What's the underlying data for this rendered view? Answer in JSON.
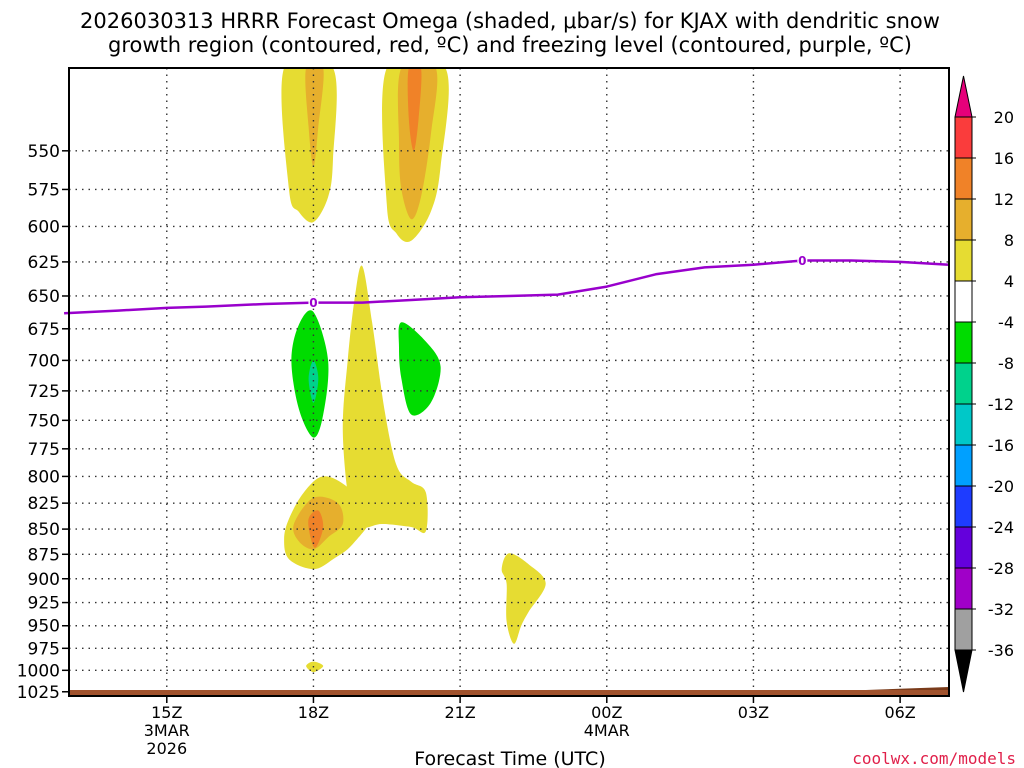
{
  "title": {
    "line1": "2026030313 HRRR Forecast Omega (shaded, μbar/s) for KJAX with dendritic snow",
    "line2": "growth region (contoured, red, ºC) and freezing level (contoured, purple, ºC)"
  },
  "credit": "coolwx.com/models",
  "chart_data": {
    "type": "time-height",
    "title": "2026030313 HRRR Forecast Omega (shaded, μbar/s) for KJAX with dendritic snow growth region (contoured, red, ºC) and freezing level (contoured, purple, ºC)",
    "xlabel": "Forecast Time (UTC)",
    "ylabel": "",
    "x_unit": "hours since 2026-03-03 13Z",
    "xlim": [
      0,
      18
    ],
    "ylim": [
      1030,
      500
    ],
    "y_scale": "log-pressure",
    "grid": true,
    "x_ticks": [
      {
        "hour": 2,
        "label": "15Z",
        "sub1": "3MAR",
        "sub2": "2026"
      },
      {
        "hour": 5,
        "label": "18Z",
        "sub1": "",
        "sub2": ""
      },
      {
        "hour": 8,
        "label": "21Z",
        "sub1": "",
        "sub2": ""
      },
      {
        "hour": 11,
        "label": "00Z",
        "sub1": "4MAR",
        "sub2": ""
      },
      {
        "hour": 14,
        "label": "03Z",
        "sub1": "",
        "sub2": ""
      },
      {
        "hour": 17,
        "label": "06Z",
        "sub1": "",
        "sub2": ""
      }
    ],
    "y_ticks": [
      {
        "p": 550,
        "label": "550"
      },
      {
        "p": 575,
        "label": "575"
      },
      {
        "p": 600,
        "label": "600"
      },
      {
        "p": 625,
        "label": "625"
      },
      {
        "p": 650,
        "label": "650"
      },
      {
        "p": 675,
        "label": "675"
      },
      {
        "p": 700,
        "label": "700"
      },
      {
        "p": 725,
        "label": "725"
      },
      {
        "p": 750,
        "label": "750"
      },
      {
        "p": 775,
        "label": "775"
      },
      {
        "p": 800,
        "label": "800"
      },
      {
        "p": 825,
        "label": "825"
      },
      {
        "p": 850,
        "label": "850"
      },
      {
        "p": 875,
        "label": "875"
      },
      {
        "p": 900,
        "label": "900"
      },
      {
        "p": 925,
        "label": "925"
      },
      {
        "p": 950,
        "label": "950"
      },
      {
        "p": 975,
        "label": "975"
      },
      {
        "p": 1000,
        "label": "1000"
      },
      {
        "p": 1025,
        "label": "1025"
      }
    ],
    "colorbar": {
      "levels": [
        -36,
        -32,
        -28,
        -24,
        -20,
        -16,
        -12,
        -8,
        -4,
        4,
        8,
        12,
        16,
        20
      ],
      "labels": [
        "-36",
        "-32",
        "-28",
        "-24",
        "-20",
        "-16",
        "-12",
        "-8",
        "-4",
        "4",
        "8",
        "12",
        "16",
        "20"
      ],
      "colors": [
        "#000000",
        "#a0a0a0",
        "#a000c8",
        "#6400dc",
        "#1e3cff",
        "#00a0ff",
        "#00c8c8",
        "#00d28c",
        "#00dc00",
        "#ffffff",
        "#e6dc32",
        "#e6af2d",
        "#f08228",
        "#fa3c3c",
        "#e6007a"
      ]
    },
    "freezing_level": {
      "name": "freezing level 0 ºC",
      "color": "#9900cc",
      "points": [
        [
          -0.1,
          663
        ],
        [
          1.0,
          661
        ],
        [
          2.0,
          659
        ],
        [
          2.8,
          658
        ],
        [
          4.0,
          656
        ],
        [
          5.0,
          655
        ],
        [
          6.0,
          655
        ],
        [
          7.0,
          653
        ],
        [
          8.0,
          651
        ],
        [
          9.0,
          650
        ],
        [
          10.0,
          649
        ],
        [
          11.0,
          643
        ],
        [
          12.0,
          634
        ],
        [
          13.0,
          629
        ],
        [
          14.0,
          627
        ],
        [
          15.0,
          624
        ],
        [
          16.0,
          624
        ],
        [
          17.0,
          625
        ],
        [
          18.0,
          627
        ]
      ],
      "labels": [
        {
          "hour": 5.0,
          "p": 655,
          "text": "0"
        },
        {
          "hour": 15.0,
          "p": 624,
          "text": "0"
        }
      ]
    },
    "terrain": {
      "name": "surface",
      "color": "#a0522d",
      "p_top": 1032
    },
    "omega_regions": [
      {
        "name": "ascent area 18Z aloft",
        "value": 4,
        "color": "#e6dc32",
        "points": [
          [
            4.4,
            500
          ],
          [
            5.4,
            500
          ],
          [
            5.4,
            555
          ],
          [
            5.3,
            580
          ],
          [
            5.0,
            597
          ],
          [
            4.7,
            590
          ],
          [
            4.5,
            575
          ]
        ]
      },
      {
        "name": "ascent core 18Z aloft",
        "value": 8,
        "color": "#e6af2d",
        "points": [
          [
            4.85,
            500
          ],
          [
            5.2,
            500
          ],
          [
            5.1,
            535
          ],
          [
            5.0,
            560
          ],
          [
            4.9,
            535
          ]
        ]
      },
      {
        "name": "ascent area 20Z aloft",
        "value": 4,
        "color": "#e6dc32",
        "points": [
          [
            6.5,
            500
          ],
          [
            7.7,
            500
          ],
          [
            7.6,
            560
          ],
          [
            7.4,
            590
          ],
          [
            7.0,
            610
          ],
          [
            6.7,
            605
          ],
          [
            6.5,
            585
          ]
        ]
      },
      {
        "name": "ascent core 20Z aloft",
        "value": 8,
        "color": "#e6af2d",
        "points": [
          [
            6.8,
            500
          ],
          [
            7.5,
            500
          ],
          [
            7.4,
            540
          ],
          [
            7.2,
            580
          ],
          [
            7.0,
            595
          ],
          [
            6.8,
            575
          ],
          [
            6.75,
            545
          ]
        ]
      },
      {
        "name": "ascent peak 20Z aloft",
        "value": 12,
        "color": "#f08228",
        "points": [
          [
            6.95,
            500
          ],
          [
            7.2,
            500
          ],
          [
            7.15,
            530
          ],
          [
            7.05,
            550
          ],
          [
            6.95,
            530
          ]
        ]
      },
      {
        "name": "descent 18Z",
        "value": -4,
        "color": "#00dc00",
        "points": [
          [
            5.0,
            662
          ],
          [
            5.3,
            700
          ],
          [
            5.2,
            745
          ],
          [
            5.0,
            765
          ],
          [
            4.7,
            740
          ],
          [
            4.55,
            700
          ],
          [
            4.7,
            672
          ]
        ]
      },
      {
        "name": "descent core 18Z",
        "value": -8,
        "color": "#00d28c",
        "points": [
          [
            5.0,
            700
          ],
          [
            5.1,
            715
          ],
          [
            5.0,
            735
          ],
          [
            4.9,
            715
          ]
        ]
      },
      {
        "name": "descent 20Z",
        "value": -4,
        "color": "#00dc00",
        "points": [
          [
            6.8,
            670
          ],
          [
            7.3,
            685
          ],
          [
            7.6,
            705
          ],
          [
            7.4,
            735
          ],
          [
            7.0,
            745
          ],
          [
            6.8,
            715
          ],
          [
            6.75,
            690
          ]
        ]
      },
      {
        "name": "ascent plume 19Z",
        "value": 4,
        "color": "#e6dc32",
        "points": [
          [
            6.0,
            628
          ],
          [
            6.2,
            670
          ],
          [
            6.45,
            740
          ],
          [
            6.7,
            790
          ],
          [
            7.0,
            805
          ],
          [
            7.3,
            815
          ],
          [
            7.3,
            852
          ],
          [
            7.0,
            848
          ],
          [
            6.4,
            845
          ],
          [
            6.0,
            848
          ],
          [
            5.75,
            830
          ],
          [
            5.6,
            760
          ],
          [
            5.7,
            700
          ],
          [
            5.85,
            650
          ]
        ]
      },
      {
        "name": "ascent low-level 18Z",
        "value": 4,
        "color": "#e6dc32",
        "points": [
          [
            4.5,
            840
          ],
          [
            4.8,
            815
          ],
          [
            5.2,
            800
          ],
          [
            5.7,
            810
          ],
          [
            6.2,
            835
          ],
          [
            5.8,
            865
          ],
          [
            5.4,
            880
          ],
          [
            5.0,
            890
          ],
          [
            4.5,
            880
          ],
          [
            4.4,
            860
          ]
        ]
      },
      {
        "name": "ascent low-level core 18Z",
        "value": 8,
        "color": "#e6af2d",
        "points": [
          [
            4.6,
            845
          ],
          [
            5.0,
            820
          ],
          [
            5.5,
            825
          ],
          [
            5.6,
            845
          ],
          [
            5.3,
            858
          ],
          [
            5.0,
            870
          ],
          [
            4.7,
            862
          ]
        ]
      },
      {
        "name": "ascent low-level peak 18Z",
        "value": 12,
        "color": "#f08228",
        "points": [
          [
            4.9,
            840
          ],
          [
            5.1,
            832
          ],
          [
            5.2,
            848
          ],
          [
            5.05,
            868
          ],
          [
            4.95,
            860
          ]
        ]
      },
      {
        "name": "ascent 22Z",
        "value": 4,
        "color": "#e6dc32",
        "points": [
          [
            9.0,
            874
          ],
          [
            9.4,
            885
          ],
          [
            9.75,
            905
          ],
          [
            9.4,
            935
          ],
          [
            9.25,
            950
          ],
          [
            9.1,
            970
          ],
          [
            8.95,
            945
          ],
          [
            8.95,
            905
          ],
          [
            8.85,
            890
          ]
        ]
      },
      {
        "name": "ascent surface blip 18Z",
        "value": 4,
        "color": "#e6dc32",
        "points": [
          [
            4.85,
            995
          ],
          [
            5.0,
            990
          ],
          [
            5.2,
            995
          ],
          [
            5.0,
            1002
          ]
        ]
      }
    ]
  }
}
